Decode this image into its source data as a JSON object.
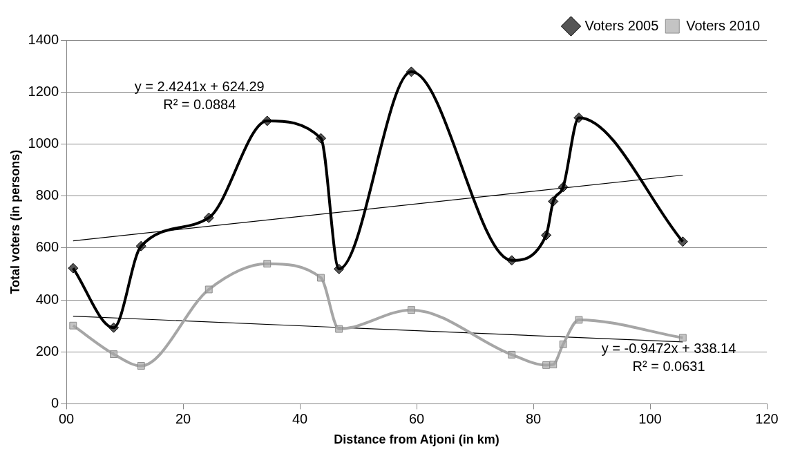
{
  "chart_data": {
    "type": "line",
    "xlabel": "Distance from Atjoni (in km)",
    "ylabel": "Total voters (in persons)",
    "xlim": [
      0,
      120
    ],
    "xticks": [
      {
        "value": 0,
        "label": "00"
      },
      20,
      40,
      60,
      80,
      100,
      120
    ],
    "ylim": [
      0,
      1400
    ],
    "yticks": [
      0,
      200,
      400,
      600,
      800,
      1000,
      1200,
      1400
    ],
    "grid": "y",
    "legend": "top right",
    "line_style": "solid",
    "series": [
      {
        "name": "Voters 2005",
        "color": "#000000",
        "marker": "diamond",
        "x": [
          1.15,
          8.1,
          12.8,
          24.4,
          34.4,
          43.6,
          46.7,
          59.1,
          76.3,
          82.2,
          83.4,
          85.1,
          87.8,
          105.6
        ],
        "values": [
          522,
          293,
          607,
          716,
          1089,
          1022,
          519,
          1278,
          552,
          649,
          779,
          834,
          1101,
          624
        ]
      },
      {
        "name": "Voters 2010",
        "color": "#a6a6a6",
        "marker": "square",
        "x": [
          1.15,
          8.1,
          12.8,
          24.4,
          34.4,
          43.6,
          46.7,
          59.1,
          76.3,
          82.2,
          83.4,
          85.1,
          87.8,
          105.6
        ],
        "values": [
          301,
          191,
          146,
          440,
          539,
          485,
          288,
          361,
          189,
          149,
          151,
          229,
          323,
          254
        ]
      },
      {
        "type": "line",
        "color": "#000000",
        "marker": "none",
        "x": [
          1.15,
          105.6
        ],
        "values": [
          627,
          880
        ]
      },
      {
        "type": "line",
        "color": "#000000",
        "marker": "none",
        "x": [
          1.15,
          105.6
        ],
        "values": [
          337,
          238
        ]
      }
    ],
    "annotations": [
      "y = 2.4241x + 624.29\nR² = 0.0884",
      "y = -0.9472x + 338.14\nR² = 0.0631"
    ]
  }
}
